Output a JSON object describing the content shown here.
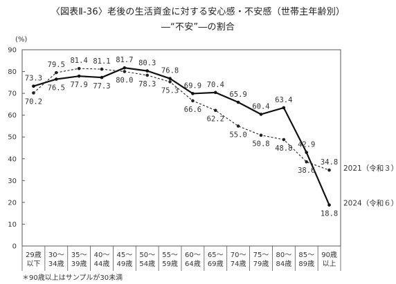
{
  "title": "〈図表Ⅱ-36〉老後の生活資金に対する安心感・不安感（世帯主年齢別）",
  "subtitle": "―“不安”―の割合",
  "chart_data": {
    "type": "line",
    "unit_label": "(%)",
    "ylim": [
      0,
      90
    ],
    "yticks": [
      0,
      10,
      20,
      30,
      40,
      50,
      60,
      70,
      80,
      90
    ],
    "categories": [
      [
        "29歳",
        "以下"
      ],
      [
        "30～",
        "34歳"
      ],
      [
        "35～",
        "39歳"
      ],
      [
        "40～",
        "44歳"
      ],
      [
        "45～",
        "49歳"
      ],
      [
        "50～",
        "54歳"
      ],
      [
        "55～",
        "59歳"
      ],
      [
        "60～",
        "64歳"
      ],
      [
        "65～",
        "69歳"
      ],
      [
        "70～",
        "74歳"
      ],
      [
        "75～",
        "79歳"
      ],
      [
        "80～",
        "84歳"
      ],
      [
        "85～",
        "89歳"
      ],
      [
        "90歳",
        "以上"
      ]
    ],
    "series": [
      {
        "name": "2024（令和６）年",
        "style": "solid",
        "values": [
          73.3,
          76.5,
          77.9,
          77.3,
          81.7,
          80.3,
          76.8,
          69.9,
          70.4,
          65.9,
          60.4,
          63.4,
          42.9,
          18.8
        ],
        "labels": [
          "73.3",
          "76.5",
          "77.9",
          "77.3",
          "81.7",
          "80.3",
          "76.8",
          "69.9",
          "70.4",
          "65.9",
          "60.4",
          "63.4",
          "42.9",
          "18.8"
        ]
      },
      {
        "name": "2021（令和３）年",
        "style": "dashed",
        "values": [
          70.2,
          79.5,
          81.4,
          81.1,
          80.0,
          78.3,
          75.3,
          66.6,
          62.2,
          55.0,
          50.8,
          48.8,
          38.6,
          34.8
        ],
        "labels": [
          "70.2",
          "79.5",
          "81.4",
          "81.1",
          "80.0",
          "78.3",
          "75.3",
          "66.6",
          "62.2",
          "55.0",
          "50.8",
          "48.8",
          "38.6",
          "34.8"
        ]
      }
    ],
    "footnote": "＊90歳以上はサンプルが30未満",
    "grid": false,
    "legend": "line-end labels"
  }
}
